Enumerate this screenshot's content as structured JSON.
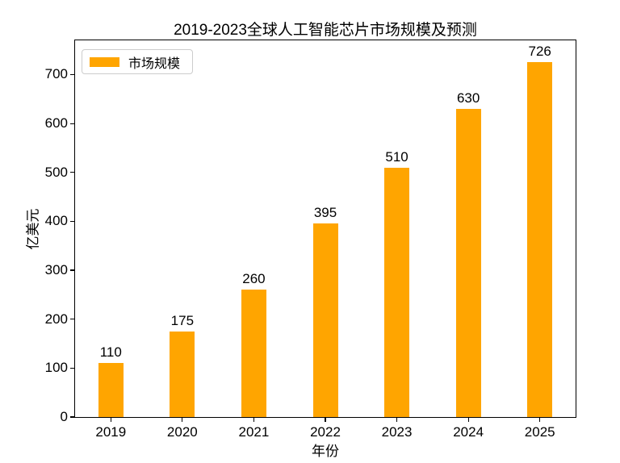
{
  "chart_data": {
    "type": "bar",
    "title": "2019-2023全球人工智能芯片市场规模及预测",
    "categories": [
      "2019",
      "2020",
      "2021",
      "2022",
      "2023",
      "2024",
      "2025"
    ],
    "values": [
      110,
      175,
      260,
      395,
      510,
      630,
      726
    ],
    "series_name": "市场规模",
    "xlabel": "年份",
    "ylabel": "亿美元",
    "ylim": [
      0,
      770
    ],
    "yticks": [
      0,
      100,
      200,
      300,
      400,
      500,
      600,
      700
    ],
    "bar_color": "#FFA500",
    "bar_labels": true,
    "grid": false,
    "legend_position": "upper-left"
  },
  "legend": {
    "label": "市场规模"
  }
}
